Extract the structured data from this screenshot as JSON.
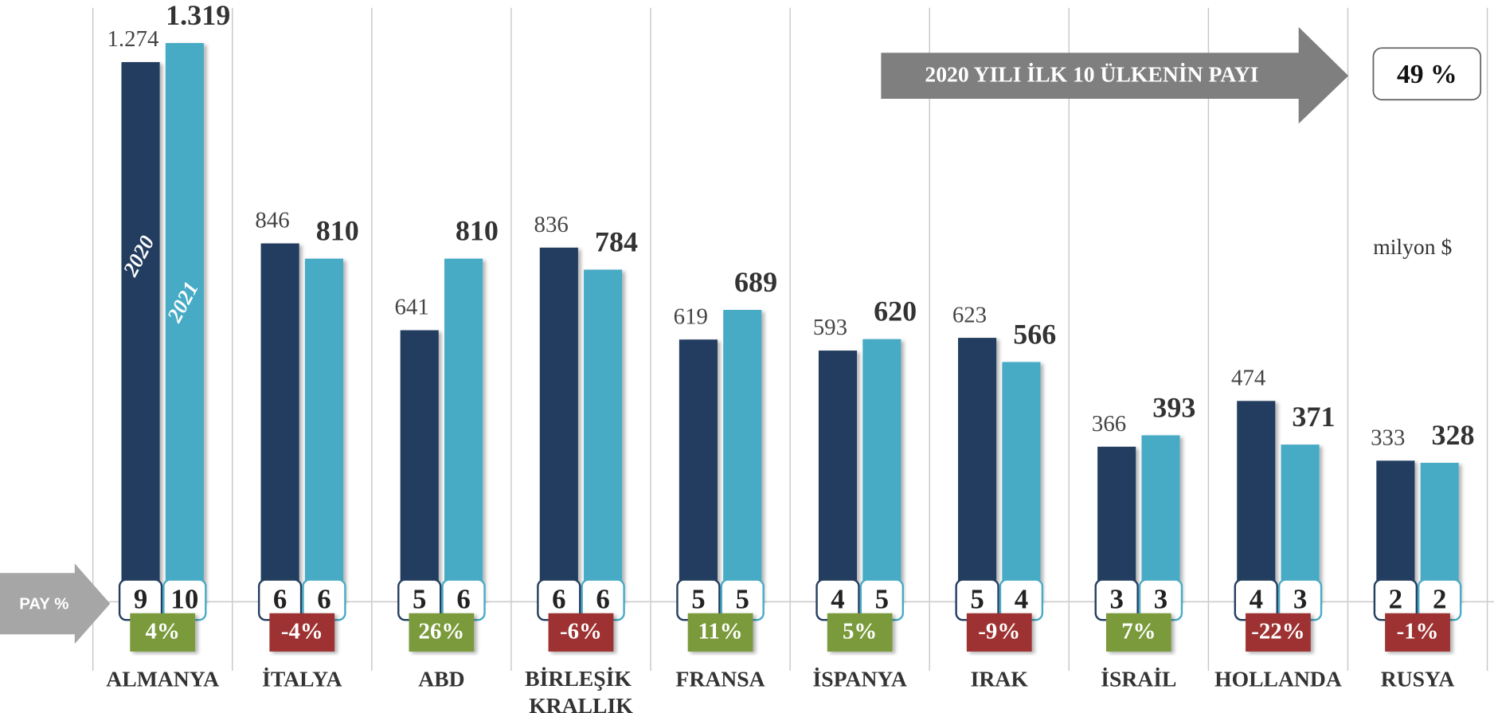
{
  "chart_data": {
    "type": "bar",
    "categories": [
      "ALMANYA",
      "İTALYA",
      "ABD",
      "BİRLEŞİK KRALLIK",
      "FRANSA",
      "İSPANYA",
      "IRAK",
      "İSRAİL",
      "HOLLANDA",
      "RUSYA"
    ],
    "series": [
      {
        "name": "2020",
        "color": "#243e5f",
        "values": [
          1274,
          846,
          641,
          836,
          619,
          593,
          623,
          366,
          474,
          333
        ],
        "value_labels": [
          "1.274",
          "846",
          "641",
          "836",
          "619",
          "593",
          "623",
          "366",
          "474",
          "333"
        ],
        "share": [
          9,
          6,
          5,
          6,
          5,
          4,
          5,
          3,
          4,
          2
        ]
      },
      {
        "name": "2021",
        "color": "#47abc6",
        "values": [
          1319,
          810,
          810,
          784,
          689,
          620,
          566,
          393,
          371,
          328
        ],
        "value_labels": [
          "1.319",
          "810",
          "810",
          "784",
          "689",
          "620",
          "566",
          "393",
          "371",
          "328"
        ],
        "share": [
          10,
          6,
          6,
          6,
          5,
          5,
          4,
          3,
          3,
          2
        ]
      }
    ],
    "change": {
      "values": [
        4,
        -4,
        26,
        -6,
        11,
        5,
        -9,
        7,
        -22,
        -1
      ],
      "value_labels": [
        "4%",
        "-4%",
        "26%",
        "-6%",
        "11%",
        "5%",
        "-9%",
        "7%",
        "-22%",
        "-1%"
      ],
      "positive_color": "#7a9a3a",
      "negative_color": "#9e3232"
    },
    "ylim": [
      0,
      1400
    ],
    "pay_label": "PAY %",
    "annotation": "2020 YILI İLK 10 ÜLKENİN PAYI",
    "share_total": {
      "value": 49,
      "label": "49 %"
    },
    "unit": "milyon $"
  }
}
